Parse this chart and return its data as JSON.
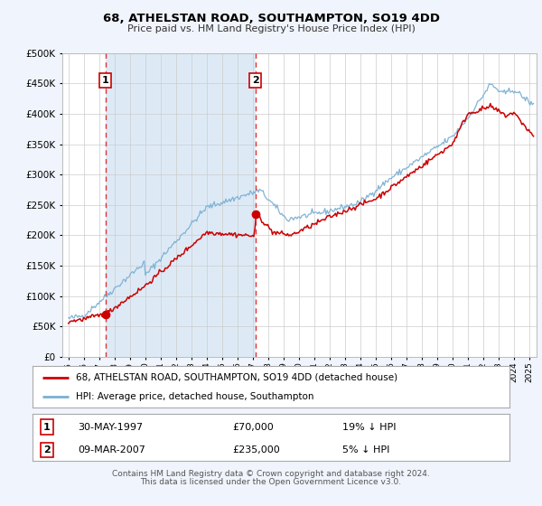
{
  "title": "68, ATHELSTAN ROAD, SOUTHAMPTON, SO19 4DD",
  "subtitle": "Price paid vs. HM Land Registry's House Price Index (HPI)",
  "legend_line1": "68, ATHELSTAN ROAD, SOUTHAMPTON, SO19 4DD (detached house)",
  "legend_line2": "HPI: Average price, detached house, Southampton",
  "table_row1_date": "30-MAY-1997",
  "table_row1_price": "£70,000",
  "table_row1_hpi": "19% ↓ HPI",
  "table_row2_date": "09-MAR-2007",
  "table_row2_price": "£235,000",
  "table_row2_hpi": "5% ↓ HPI",
  "footer_line1": "Contains HM Land Registry data © Crown copyright and database right 2024.",
  "footer_line2": "This data is licensed under the Open Government Licence v3.0.",
  "red_line_color": "#cc0000",
  "blue_line_color": "#7ab0d4",
  "bg_color": "#f0f4fc",
  "plot_bg_color": "#ffffff",
  "shaded_region_color": "#ddeaf6",
  "vline_color": "#dd3333",
  "grid_color": "#cccccc",
  "sale1_year": 1997.41,
  "sale1_value": 70000,
  "sale2_year": 2007.18,
  "sale2_value": 235000,
  "xmin": 1994.6,
  "xmax": 2025.5,
  "ymin": 0,
  "ymax": 500000,
  "badge1_value": 455000,
  "badge2_value": 455000
}
